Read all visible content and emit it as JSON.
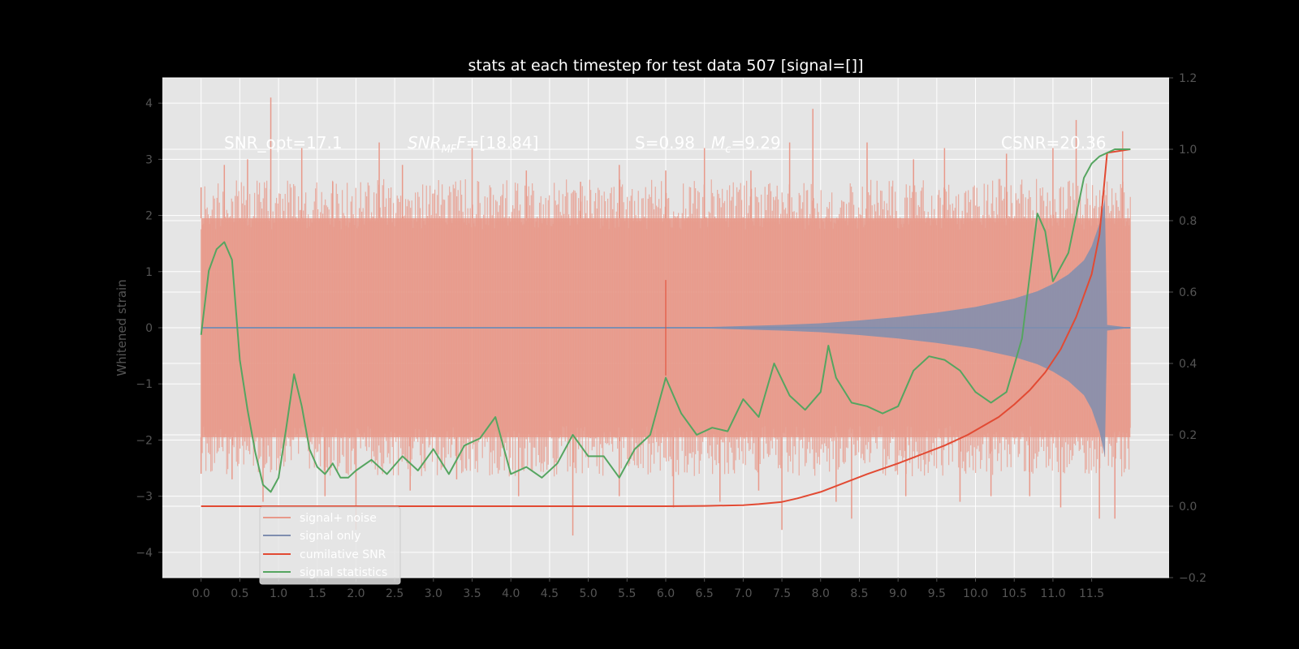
{
  "chart_data": {
    "type": "line",
    "title": "stats at each timestep for test data 507 [signal=[]]",
    "ylabel": "Whitened strain",
    "xlim": [
      -0.5,
      12.5
    ],
    "ylim": [
      -4.45,
      4.45
    ],
    "ylim_right": [
      -0.2,
      1.2
    ],
    "x_ticks": [
      "0.0",
      "0.5",
      "1.0",
      "1.5",
      "2.0",
      "2.5",
      "3.0",
      "3.5",
      "4.0",
      "4.5",
      "5.0",
      "5.5",
      "6.0",
      "6.5",
      "7.0",
      "7.5",
      "8.0",
      "8.5",
      "9.0",
      "9.5",
      "10.0",
      "10.5",
      "11.0",
      "11.5"
    ],
    "y_ticks": [
      "4",
      "3",
      "2",
      "1",
      "0",
      "−1",
      "−2",
      "−3",
      "−4"
    ],
    "y_ticks_right": [
      "1.2",
      "1.0",
      "0.8",
      "0.6",
      "0.4",
      "0.2",
      "0.0",
      "−0.2"
    ],
    "annotations": {
      "snr_opt": "SNR_opt=17.1",
      "snr_mf_label": "SNR",
      "snr_mf_sub": "MF",
      "snr_mf_value": "=[18.84]",
      "s_value": "S=0.98",
      "mc_label": "M",
      "mc_sub": "c",
      "mc_value": "=9.29",
      "csnr": "CSNR=20.36"
    },
    "legend": {
      "placement": "lower-left",
      "entries": [
        "signal+ noise",
        "signal only",
        "cumilative SNR",
        "signal statistics"
      ]
    },
    "series": [
      {
        "name": "signal+ noise",
        "axis": "left",
        "color": "#E8998A",
        "x_range": [
          0.0,
          12.0
        ],
        "band_upper": 1.95,
        "band_lower": -1.95,
        "peaks": [
          [
            0.0,
            2.5
          ],
          [
            0.3,
            2.9
          ],
          [
            0.6,
            3.0
          ],
          [
            0.9,
            4.1
          ],
          [
            1.3,
            3.2
          ],
          [
            1.7,
            2.6
          ],
          [
            2.3,
            3.3
          ],
          [
            2.6,
            2.9
          ],
          [
            3.5,
            3.2
          ],
          [
            4.2,
            2.8
          ],
          [
            4.9,
            2.6
          ],
          [
            5.4,
            2.9
          ],
          [
            6.0,
            2.8
          ],
          [
            6.5,
            3.2
          ],
          [
            7.1,
            2.8
          ],
          [
            7.6,
            3.3
          ],
          [
            7.9,
            3.9
          ],
          [
            8.6,
            3.3
          ],
          [
            9.2,
            3.0
          ],
          [
            9.6,
            3.2
          ],
          [
            10.4,
            3.1
          ],
          [
            11.0,
            3.2
          ],
          [
            11.3,
            3.7
          ],
          [
            11.9,
            3.5
          ]
        ],
        "troughs": [
          [
            0.0,
            -2.6
          ],
          [
            0.4,
            -2.7
          ],
          [
            0.8,
            -3.1
          ],
          [
            1.6,
            -3.0
          ],
          [
            2.0,
            -3.6
          ],
          [
            2.7,
            -2.9
          ],
          [
            3.3,
            -2.7
          ],
          [
            4.1,
            -3.0
          ],
          [
            4.8,
            -3.7
          ],
          [
            5.4,
            -3.0
          ],
          [
            6.1,
            -3.2
          ],
          [
            6.7,
            -3.1
          ],
          [
            7.2,
            -2.9
          ],
          [
            7.5,
            -3.6
          ],
          [
            8.2,
            -3.1
          ],
          [
            8.4,
            -3.4
          ],
          [
            9.1,
            -3.0
          ],
          [
            9.8,
            -3.1
          ],
          [
            10.2,
            -3.0
          ],
          [
            10.7,
            -3.0
          ],
          [
            11.1,
            -3.2
          ],
          [
            11.6,
            -3.4
          ],
          [
            11.8,
            -3.4
          ]
        ]
      },
      {
        "name": "signal only",
        "axis": "left",
        "color": "#7F8EAF",
        "x_range": [
          0.0,
          12.0
        ],
        "envelope": [
          [
            0.0,
            0.0
          ],
          [
            6.5,
            0.01
          ],
          [
            7.0,
            0.03
          ],
          [
            7.5,
            0.05
          ],
          [
            8.0,
            0.08
          ],
          [
            8.5,
            0.13
          ],
          [
            9.0,
            0.19
          ],
          [
            9.5,
            0.27
          ],
          [
            10.0,
            0.37
          ],
          [
            10.5,
            0.52
          ],
          [
            10.8,
            0.65
          ],
          [
            11.0,
            0.78
          ],
          [
            11.2,
            0.95
          ],
          [
            11.4,
            1.2
          ],
          [
            11.5,
            1.45
          ],
          [
            11.6,
            1.85
          ],
          [
            11.65,
            2.15
          ],
          [
            11.67,
            2.3
          ],
          [
            11.7,
            0.05
          ],
          [
            12.0,
            0.0
          ]
        ],
        "spike": [
          6.0,
          0.85,
          -0.85
        ]
      },
      {
        "name": "cumilative SNR",
        "axis": "right",
        "color": "#E24A33",
        "x": [
          0.0,
          1.0,
          2.0,
          3.0,
          4.0,
          5.0,
          6.0,
          6.5,
          7.0,
          7.2,
          7.5,
          7.7,
          8.0,
          8.3,
          8.6,
          9.0,
          9.3,
          9.6,
          9.9,
          10.1,
          10.3,
          10.5,
          10.7,
          10.9,
          11.1,
          11.3,
          11.5,
          11.6,
          11.7,
          12.0
        ],
        "y": [
          0.0,
          0.0,
          0.0,
          0.0,
          0.0,
          0.0,
          0.0,
          0.001,
          0.003,
          0.006,
          0.012,
          0.022,
          0.04,
          0.065,
          0.09,
          0.12,
          0.145,
          0.17,
          0.2,
          0.225,
          0.25,
          0.285,
          0.325,
          0.375,
          0.44,
          0.53,
          0.65,
          0.76,
          0.99,
          1.0
        ]
      },
      {
        "name": "signal statistics",
        "axis": "right",
        "color": "#55A560",
        "x": [
          0.0,
          0.1,
          0.2,
          0.3,
          0.4,
          0.5,
          0.6,
          0.7,
          0.8,
          0.9,
          1.0,
          1.1,
          1.2,
          1.3,
          1.4,
          1.5,
          1.6,
          1.7,
          1.8,
          1.9,
          2.0,
          2.2,
          2.4,
          2.6,
          2.8,
          3.0,
          3.2,
          3.4,
          3.6,
          3.8,
          4.0,
          4.2,
          4.4,
          4.6,
          4.8,
          5.0,
          5.2,
          5.4,
          5.6,
          5.8,
          6.0,
          6.2,
          6.4,
          6.6,
          6.8,
          7.0,
          7.2,
          7.4,
          7.6,
          7.8,
          8.0,
          8.1,
          8.2,
          8.4,
          8.6,
          8.8,
          9.0,
          9.2,
          9.4,
          9.6,
          9.8,
          10.0,
          10.2,
          10.4,
          10.6,
          10.8,
          10.9,
          11.0,
          11.2,
          11.4,
          11.5,
          11.6,
          11.7,
          11.8,
          11.9,
          12.0
        ],
        "y": [
          0.48,
          0.66,
          0.72,
          0.74,
          0.69,
          0.41,
          0.27,
          0.15,
          0.06,
          0.04,
          0.08,
          0.22,
          0.37,
          0.28,
          0.16,
          0.11,
          0.09,
          0.12,
          0.08,
          0.08,
          0.1,
          0.13,
          0.09,
          0.14,
          0.1,
          0.16,
          0.09,
          0.17,
          0.19,
          0.25,
          0.09,
          0.11,
          0.08,
          0.12,
          0.2,
          0.14,
          0.14,
          0.08,
          0.16,
          0.2,
          0.36,
          0.26,
          0.2,
          0.22,
          0.21,
          0.3,
          0.25,
          0.4,
          0.31,
          0.27,
          0.32,
          0.45,
          0.36,
          0.29,
          0.28,
          0.26,
          0.28,
          0.38,
          0.42,
          0.41,
          0.38,
          0.32,
          0.29,
          0.32,
          0.47,
          0.82,
          0.77,
          0.63,
          0.71,
          0.92,
          0.96,
          0.98,
          0.99,
          1.0,
          1.0,
          1.0
        ]
      }
    ]
  }
}
